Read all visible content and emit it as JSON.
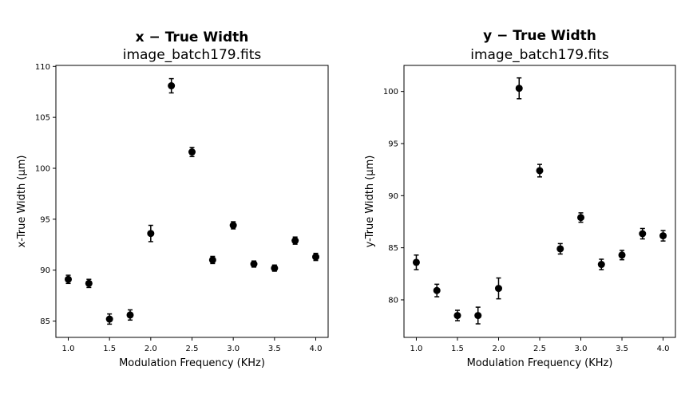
{
  "chart_data": [
    {
      "type": "scatter",
      "title": "x − True Width",
      "subtitle": "image_batch179.fits",
      "xlabel": "Modulation Frequency (KHz)",
      "ylabel": "x-True Width (μm)",
      "xlim": [
        0.85,
        4.15
      ],
      "ylim": [
        83.4,
        110.1
      ],
      "xticks": [
        "1.0",
        "1.5",
        "2.0",
        "2.5",
        "3.0",
        "3.5",
        "4.0"
      ],
      "xtick_values": [
        1.0,
        1.5,
        2.0,
        2.5,
        3.0,
        3.5,
        4.0
      ],
      "yticks": [
        "85",
        "90",
        "95",
        "100",
        "105",
        "110"
      ],
      "ytick_values": [
        85,
        90,
        95,
        100,
        105,
        110
      ],
      "grid": false,
      "marker_color": "#000000",
      "x": [
        1.0,
        1.25,
        1.5,
        1.75,
        2.0,
        2.25,
        2.5,
        2.75,
        3.0,
        3.25,
        3.5,
        3.75,
        4.0
      ],
      "y": [
        89.1,
        88.7,
        85.2,
        85.6,
        93.6,
        108.1,
        101.6,
        91.0,
        94.4,
        90.6,
        90.2,
        92.9,
        91.3
      ],
      "yerr": [
        0.4,
        0.4,
        0.5,
        0.5,
        0.8,
        0.7,
        0.45,
        0.35,
        0.35,
        0.3,
        0.3,
        0.35,
        0.35
      ]
    },
    {
      "type": "scatter",
      "title": "y − True Width",
      "subtitle": "image_batch179.fits",
      "xlabel": "Modulation Frequency (KHz)",
      "ylabel": "y-True Width (μm)",
      "xlim": [
        0.85,
        4.15
      ],
      "ylim": [
        76.4,
        102.5
      ],
      "xticks": [
        "1.0",
        "1.5",
        "2.0",
        "2.5",
        "3.0",
        "3.5",
        "4.0"
      ],
      "xtick_values": [
        1.0,
        1.5,
        2.0,
        2.5,
        3.0,
        3.5,
        4.0
      ],
      "yticks": [
        "80",
        "85",
        "90",
        "95",
        "100"
      ],
      "ytick_values": [
        80,
        85,
        90,
        95,
        100
      ],
      "grid": false,
      "marker_color": "#000000",
      "x": [
        1.0,
        1.25,
        1.5,
        1.75,
        2.0,
        2.25,
        2.5,
        2.75,
        3.0,
        3.25,
        3.5,
        3.75,
        4.0
      ],
      "y": [
        83.6,
        80.9,
        78.5,
        78.5,
        81.1,
        100.3,
        92.4,
        84.9,
        87.9,
        83.4,
        84.3,
        86.35,
        86.15
      ],
      "yerr": [
        0.7,
        0.6,
        0.5,
        0.8,
        1.0,
        1.0,
        0.6,
        0.5,
        0.45,
        0.5,
        0.45,
        0.5,
        0.5
      ]
    }
  ]
}
